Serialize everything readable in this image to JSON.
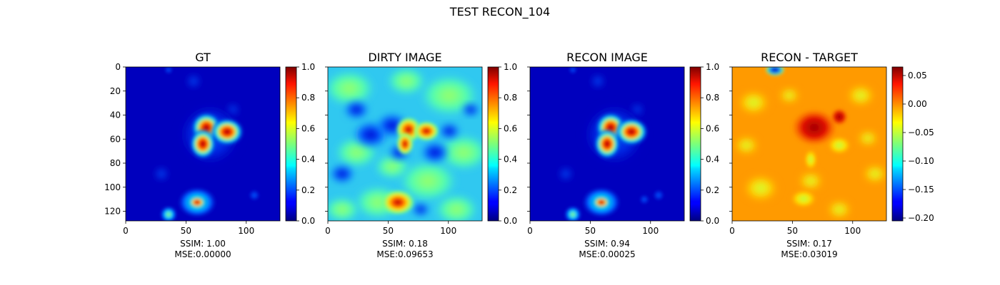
{
  "figure": {
    "title": "TEST RECON_104"
  },
  "chart_data": [
    {
      "type": "heatmap",
      "title": "GT",
      "colormap": "jet",
      "extent": [
        0,
        128
      ],
      "x_ticks": [
        0,
        50,
        100
      ],
      "y_ticks": [
        0,
        20,
        40,
        60,
        80,
        100,
        120
      ],
      "show_y_tick_labels": true,
      "colorbar": {
        "min": 0.0,
        "max": 1.0,
        "ticks": [
          0.0,
          0.2,
          0.4,
          0.6,
          0.8,
          1.0
        ],
        "tick_labels": [
          "0.0",
          "0.2",
          "0.4",
          "0.6",
          "0.8",
          "1.0"
        ]
      },
      "metrics": [
        "SSIM: 1.00",
        "MSE:0.00000"
      ]
    },
    {
      "type": "heatmap",
      "title": "DIRTY IMAGE",
      "colormap": "jet",
      "extent": [
        0,
        128
      ],
      "x_ticks": [
        0,
        50,
        100
      ],
      "y_ticks": [
        0,
        20,
        40,
        60,
        80,
        100,
        120
      ],
      "show_y_tick_labels": false,
      "colorbar": {
        "min": 0.0,
        "max": 1.0,
        "ticks": [
          0.0,
          0.2,
          0.4,
          0.6,
          0.8,
          1.0
        ],
        "tick_labels": [
          "0.0",
          "0.2",
          "0.4",
          "0.6",
          "0.8",
          "1.0"
        ]
      },
      "metrics": [
        "SSIM: 0.18",
        "MSE:0.09653"
      ]
    },
    {
      "type": "heatmap",
      "title": "RECON IMAGE",
      "colormap": "jet",
      "extent": [
        0,
        128
      ],
      "x_ticks": [
        0,
        50,
        100
      ],
      "y_ticks": [
        0,
        20,
        40,
        60,
        80,
        100,
        120
      ],
      "show_y_tick_labels": false,
      "colorbar": {
        "min": 0.0,
        "max": 1.0,
        "ticks": [
          0.0,
          0.2,
          0.4,
          0.6,
          0.8,
          1.0
        ],
        "tick_labels": [
          "0.0",
          "0.2",
          "0.4",
          "0.6",
          "0.8",
          "1.0"
        ]
      },
      "metrics": [
        "SSIM: 0.94",
        "MSE:0.00025"
      ]
    },
    {
      "type": "heatmap",
      "title": "RECON - TARGET",
      "colormap": "jet",
      "extent": [
        0,
        128
      ],
      "x_ticks": [
        0,
        50,
        100
      ],
      "y_ticks": [
        0,
        20,
        40,
        60,
        80,
        100,
        120
      ],
      "show_y_tick_labels": false,
      "colorbar": {
        "min": -0.205,
        "max": 0.065,
        "ticks": [
          -0.2,
          -0.15,
          -0.1,
          -0.05,
          0.0,
          0.05
        ],
        "tick_labels": [
          "−0.20",
          "−0.15",
          "−0.10",
          "−0.05",
          "0.00",
          "0.05"
        ]
      },
      "metrics": [
        "SSIM: 0.17",
        "MSE:0.03019"
      ]
    }
  ]
}
